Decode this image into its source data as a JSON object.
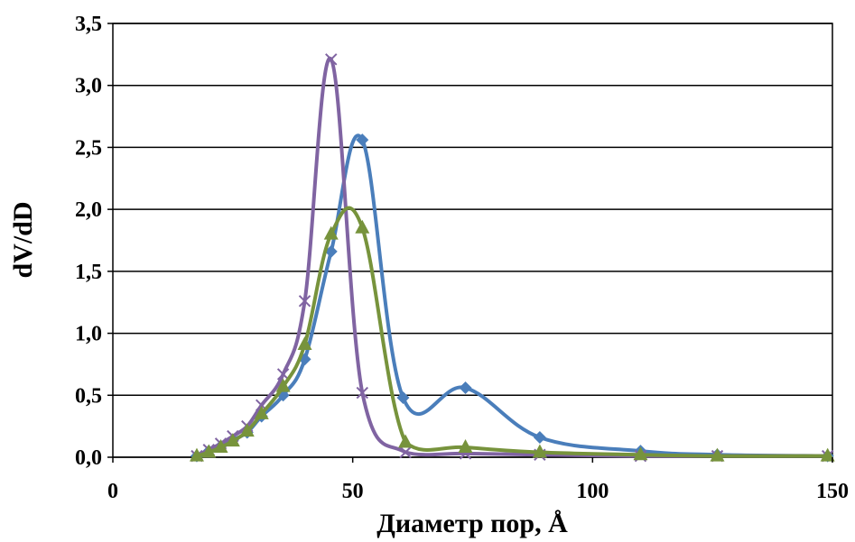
{
  "chart_data": {
    "type": "scatter",
    "title": "",
    "xlabel": "Диаметр пор, Å",
    "ylabel": "dV/dD",
    "xlim": [
      0,
      150
    ],
    "ylim": [
      0,
      3.5
    ],
    "xticks": [
      0,
      50,
      100,
      150
    ],
    "yticks": [
      0,
      0.5,
      1.0,
      1.5,
      2.0,
      2.5,
      3.0,
      3.5
    ],
    "xtick_labels": [
      "0",
      "50",
      "100",
      "150"
    ],
    "ytick_labels": [
      "0,0",
      "0,5",
      "1,0",
      "1,5",
      "2,0",
      "2,5",
      "3,0",
      "3,5"
    ],
    "grid": "horizontal",
    "legend": "none",
    "series": [
      {
        "color": "#4a7ebb",
        "marker": "diamond",
        "points": [
          [
            17.5,
            0.01
          ],
          [
            20,
            0.05
          ],
          [
            22.5,
            0.09
          ],
          [
            25,
            0.14
          ],
          [
            28,
            0.2
          ],
          [
            31,
            0.33
          ],
          [
            35.5,
            0.5
          ],
          [
            40,
            0.79
          ],
          [
            45.5,
            1.66
          ],
          [
            52,
            2.56
          ],
          [
            60.5,
            0.48
          ],
          [
            73.5,
            0.56
          ],
          [
            89,
            0.16
          ],
          [
            110,
            0.05
          ],
          [
            126,
            0.02
          ],
          [
            149,
            0.01
          ]
        ]
      },
      {
        "color": "#8064a2",
        "marker": "x",
        "points": [
          [
            17.5,
            0.01
          ],
          [
            20,
            0.06
          ],
          [
            22.5,
            0.11
          ],
          [
            25,
            0.17
          ],
          [
            28,
            0.25
          ],
          [
            31,
            0.42
          ],
          [
            35.5,
            0.67
          ],
          [
            40,
            1.26
          ],
          [
            45.5,
            3.21
          ],
          [
            52,
            0.52
          ],
          [
            61,
            0.04
          ],
          [
            73.5,
            0.03
          ],
          [
            89,
            0.02
          ],
          [
            110,
            0.01
          ],
          [
            126,
            0.01
          ],
          [
            149,
            0.01
          ]
        ]
      },
      {
        "color": "#77933c",
        "marker": "triangle",
        "points": [
          [
            17.5,
            0.01
          ],
          [
            20,
            0.04
          ],
          [
            22.5,
            0.08
          ],
          [
            25,
            0.13
          ],
          [
            28,
            0.21
          ],
          [
            31,
            0.35
          ],
          [
            35.5,
            0.57
          ],
          [
            40,
            0.91
          ],
          [
            45.5,
            1.8
          ],
          [
            52,
            1.85
          ],
          [
            61,
            0.12
          ],
          [
            73.5,
            0.08
          ],
          [
            89,
            0.04
          ],
          [
            110,
            0.02
          ],
          [
            126,
            0.01
          ],
          [
            149,
            0.01
          ]
        ]
      }
    ]
  }
}
